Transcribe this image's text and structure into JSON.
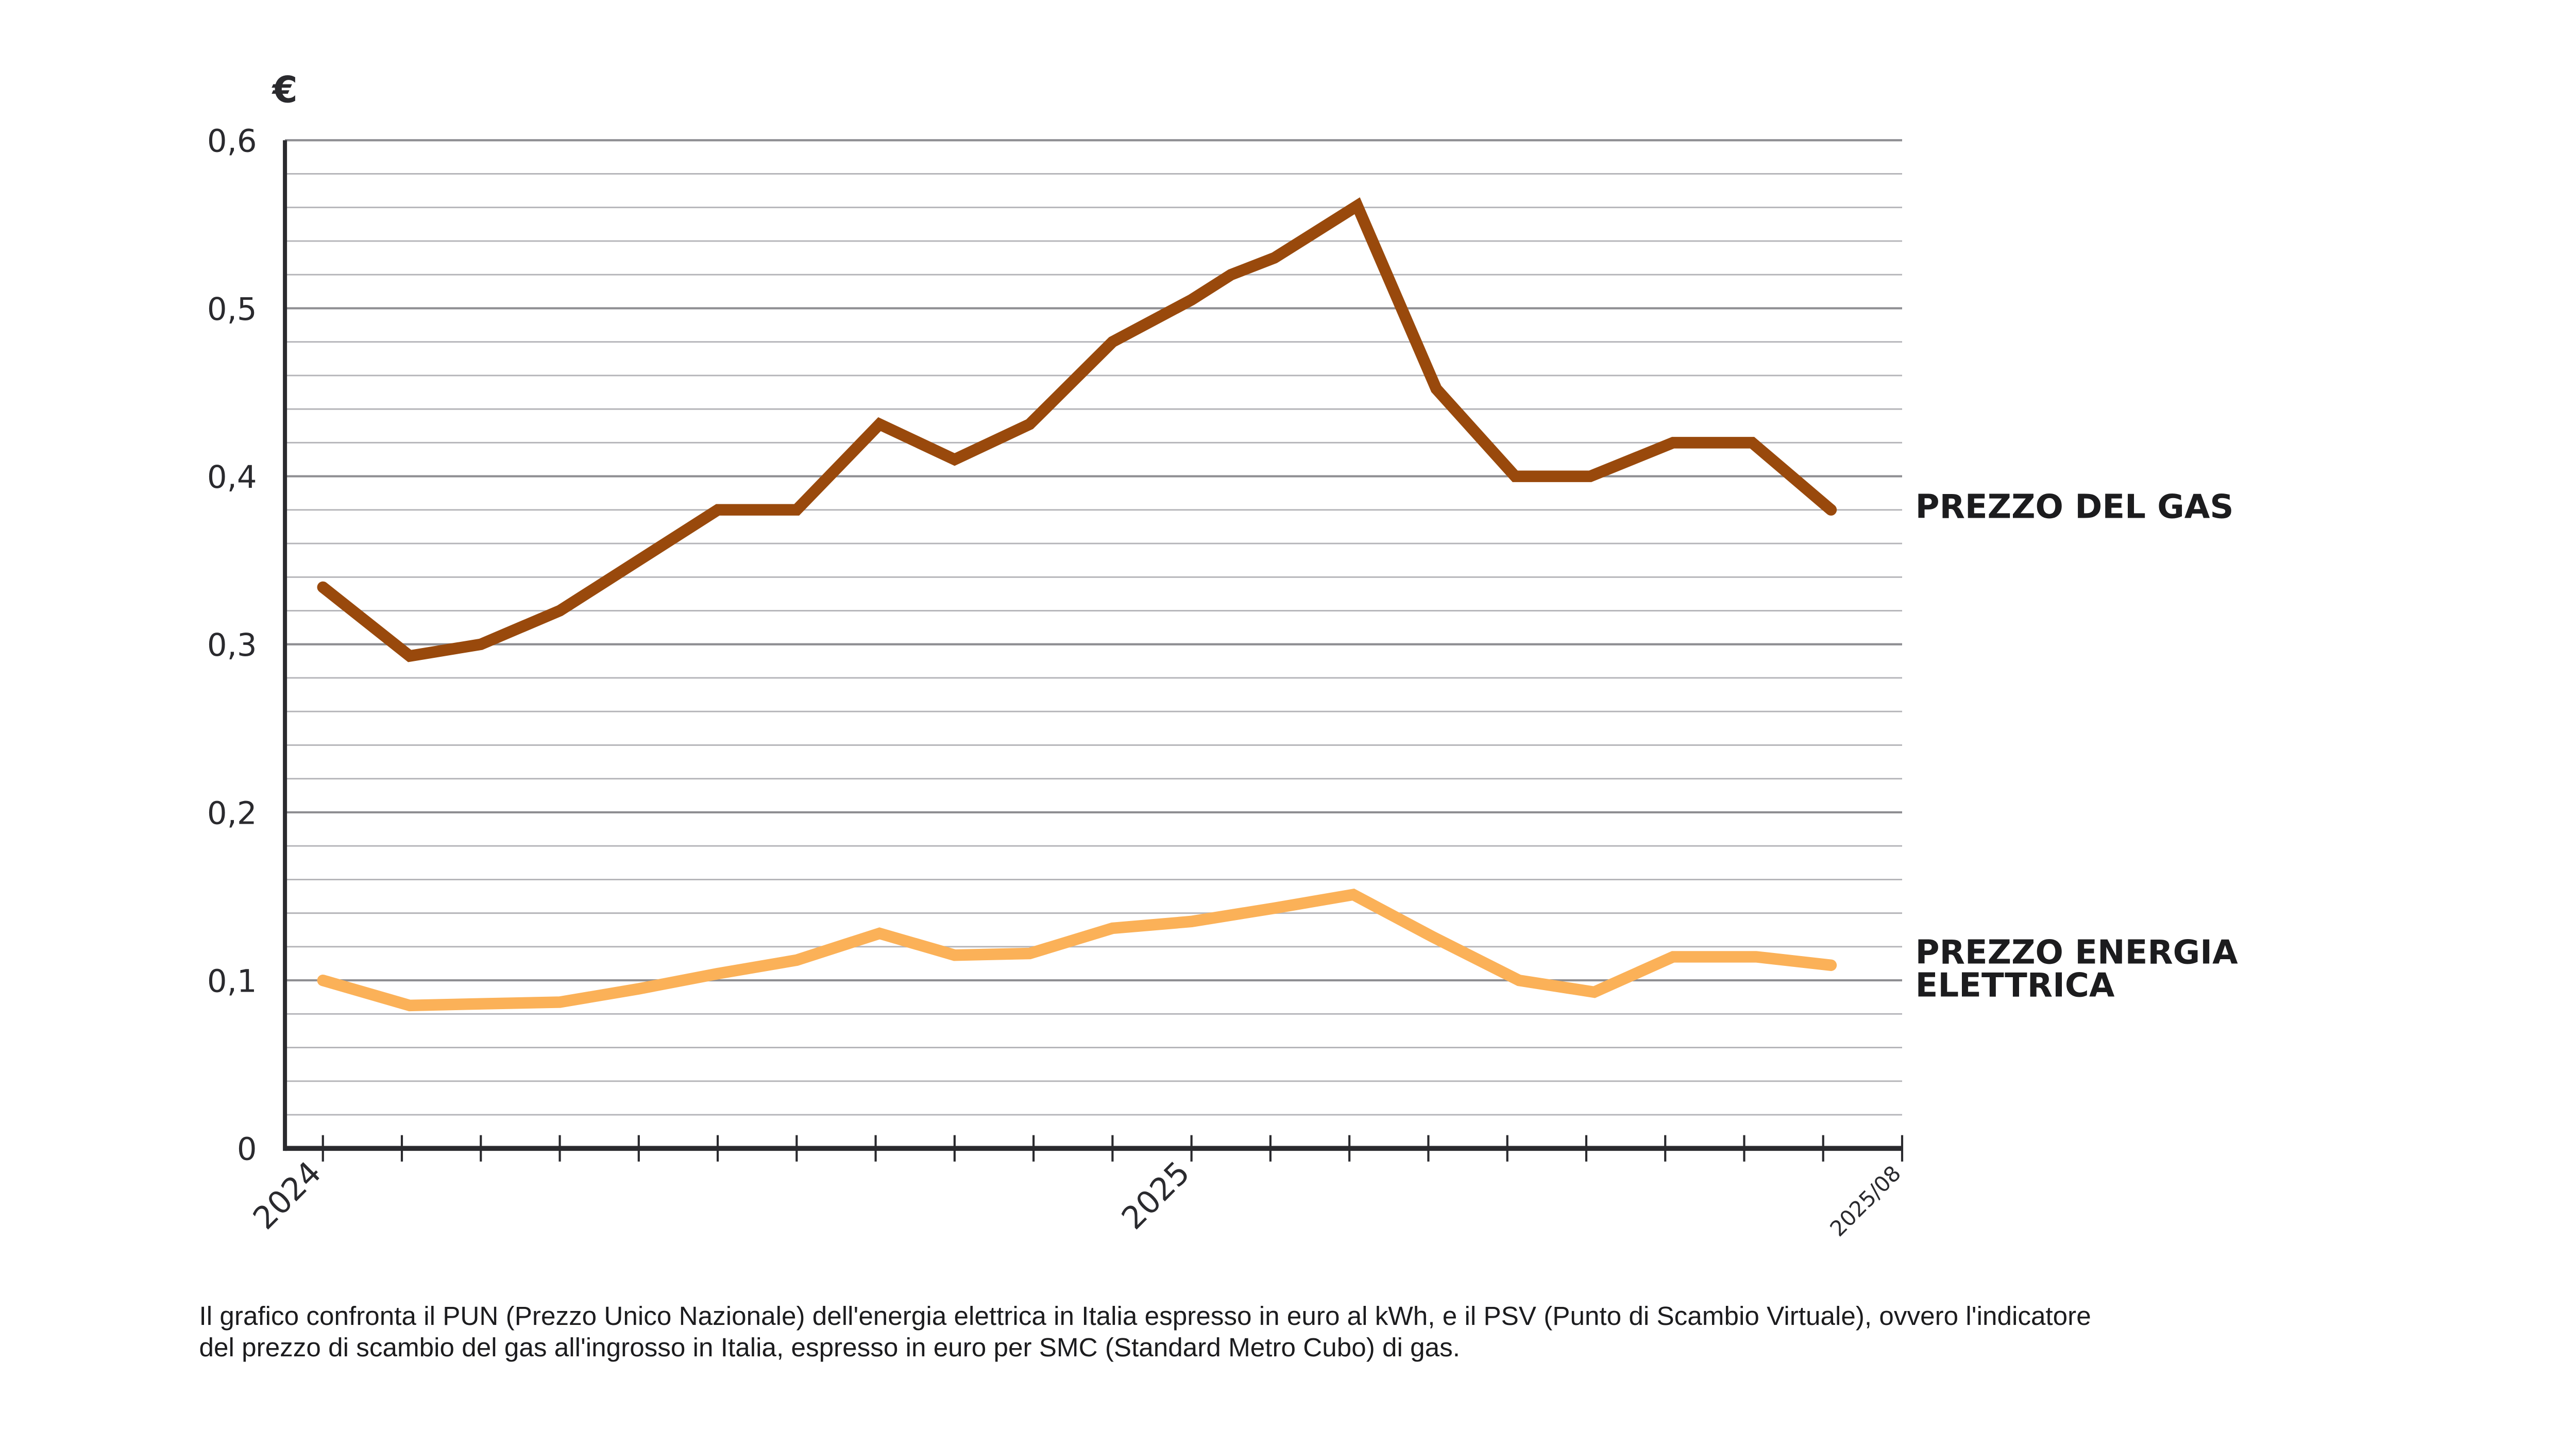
{
  "chart_data": {
    "type": "line",
    "title": "",
    "ylabel": "€",
    "xlabel": "",
    "ylim": [
      0,
      0.6
    ],
    "y_ticks": [
      "0",
      "0,1",
      "0,2",
      "0,3",
      "0,4",
      "0,5",
      "0,6"
    ],
    "y_tick_values": [
      0,
      0.1,
      0.2,
      0.3,
      0.4,
      0.5,
      0.6
    ],
    "minor_gridlines_per_major": 5,
    "grid": true,
    "x_tick_labels": [
      {
        "label": "2024",
        "index": 0
      },
      {
        "label": "2025",
        "index": 11
      },
      {
        "label": "2025/08",
        "index": 20
      }
    ],
    "x_tick_count": 21,
    "series": [
      {
        "name": "PREZZO DEL GAS",
        "color": "#99490c",
        "x": [
          0,
          1.1,
          2,
          3,
          4,
          5,
          6,
          7.05,
          8,
          8.95,
          10,
          11,
          11.5,
          12.05,
          13.1,
          14.1,
          15.1,
          16.05,
          17.1,
          18.1,
          19.1
        ],
        "values": [
          0.334,
          0.293,
          0.3,
          0.32,
          0.35,
          0.38,
          0.38,
          0.431,
          0.41,
          0.431,
          0.48,
          0.505,
          0.52,
          0.53,
          0.561,
          0.452,
          0.4,
          0.4,
          0.42,
          0.42,
          0.38
        ]
      },
      {
        "name": "PREZZO ENERGIA ELETTRICA",
        "color": "#fbb158",
        "x": [
          0,
          1.1,
          2,
          3,
          4,
          5,
          6,
          7.05,
          8,
          8.95,
          10,
          11,
          12.05,
          13.05,
          14.05,
          15.15,
          16.1,
          17.1,
          18.15,
          19.1
        ],
        "values": [
          0.1,
          0.085,
          0.086,
          0.087,
          0.095,
          0.104,
          0.112,
          0.128,
          0.115,
          0.116,
          0.131,
          0.135,
          0.143,
          0.151,
          0.126,
          0.1,
          0.093,
          0.114,
          0.114,
          0.109
        ]
      }
    ],
    "legend": "right-of-lines",
    "caption_lines": [
      "Il grafico confronta il PUN (Prezzo Unico Nazionale) dell'energia elettrica in Italia espresso in euro al kWh, e il PSV (Punto di Scambio Virtuale), ovvero l'indicatore",
      "del prezzo di scambio del gas all'ingrosso in Italia, espresso in euro per SMC (Standard Metro Cubo) di gas."
    ]
  },
  "labels": {
    "unit": "€",
    "gas_label": "PREZZO DEL GAS",
    "elec_label_line1": "PREZZO ENERGIA",
    "elec_label_line2": "ELETTRICA"
  }
}
